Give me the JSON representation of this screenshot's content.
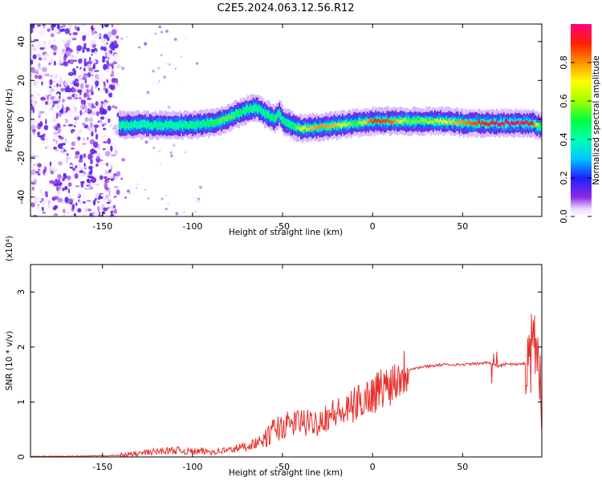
{
  "title": "C2E5.2024.063.12.56.R12",
  "chart_data": [
    {
      "type": "heatmap",
      "xlabel": "Height of straight line (km)",
      "ylabel": "Frequency (Hz)",
      "xlim": [
        -190,
        94
      ],
      "ylim": [
        -50,
        49
      ],
      "xticks": [
        -150,
        -100,
        -50,
        0,
        50
      ],
      "xtick_labels": [
        "-150",
        "-100",
        "-50",
        "0",
        "50"
      ],
      "yticks": [
        40,
        20,
        0,
        -20,
        -40
      ],
      "ytick_labels": [
        "40",
        "20",
        "0",
        "-20",
        "-40"
      ],
      "colorbar": {
        "label": "Normalized spectral amplitude",
        "range": [
          0,
          1
        ],
        "ticks": [
          0.0,
          0.2,
          0.4,
          0.6,
          0.8
        ],
        "tick_labels": [
          "0.0",
          "0.2",
          "0.4",
          "0.6",
          "0.8"
        ],
        "colormap": "rainbow"
      },
      "noise_region_x": [
        -190,
        -141
      ],
      "ridge": {
        "x": [
          -140,
          -130,
          -120,
          -110,
          -100,
          -90,
          -85,
          -80,
          -75,
          -70,
          -65,
          -60,
          -55,
          -52,
          -50,
          -45,
          -40,
          -30,
          -20,
          -10,
          0,
          10,
          20,
          30,
          40,
          50,
          60,
          70,
          80,
          88,
          93
        ],
        "freq": [
          -3,
          -3,
          -3,
          -3,
          -3,
          -2,
          -1,
          1,
          3,
          5,
          6,
          3,
          0,
          3,
          -1,
          -3,
          -5,
          -4,
          -3,
          -2,
          -1,
          -1,
          -1,
          -1,
          -1,
          -2,
          -2,
          -2,
          -2,
          -2,
          -4
        ],
        "amplitude": [
          0.45,
          0.4,
          0.45,
          0.42,
          0.45,
          0.5,
          0.55,
          0.55,
          0.5,
          0.45,
          0.45,
          0.45,
          0.5,
          0.45,
          0.5,
          0.45,
          0.7,
          0.8,
          0.75,
          0.5,
          0.9,
          0.85,
          0.55,
          0.6,
          0.7,
          0.8,
          0.9,
          1.0,
          1.0,
          0.95,
          0.5
        ]
      }
    },
    {
      "type": "line",
      "xlabel": "Height of straight line (km)",
      "ylabel": "SNR (10 * v/v)",
      "y_multiplier": "(x10⁴)",
      "xlim": [
        -190,
        94
      ],
      "ylim": [
        0,
        3.5
      ],
      "xticks": [
        -150,
        -100,
        -50,
        0,
        50
      ],
      "xtick_labels": [
        "-150",
        "-100",
        "-50",
        "0",
        "50"
      ],
      "yticks": [
        0,
        1,
        2,
        3
      ],
      "ytick_labels": [
        "0",
        "1",
        "2",
        "3"
      ],
      "series": [
        {
          "color": "#e8302c",
          "x": [
            -190,
            -170,
            -150,
            -140,
            -130,
            -120,
            -110,
            -100,
            -90,
            -80,
            -70,
            -60,
            -55,
            -50,
            -45,
            -40,
            -35,
            -30,
            -25,
            -20,
            -15,
            -10,
            -5,
            0,
            5,
            10,
            15,
            20,
            25,
            30,
            40,
            50,
            60,
            65,
            70,
            75,
            80,
            85,
            88,
            90,
            92,
            94
          ],
          "y": [
            0.01,
            0.01,
            0.02,
            0.03,
            0.06,
            0.1,
            0.12,
            0.1,
            0.1,
            0.12,
            0.2,
            0.3,
            0.5,
            0.55,
            0.6,
            0.65,
            0.6,
            0.65,
            0.75,
            0.8,
            0.8,
            0.95,
            1.05,
            1.15,
            1.25,
            1.35,
            1.5,
            1.6,
            1.62,
            1.65,
            1.68,
            1.68,
            1.7,
            1.72,
            1.65,
            1.7,
            1.68,
            1.7,
            1.75,
            2.1,
            1.6,
            1.0
          ]
        }
      ]
    }
  ]
}
